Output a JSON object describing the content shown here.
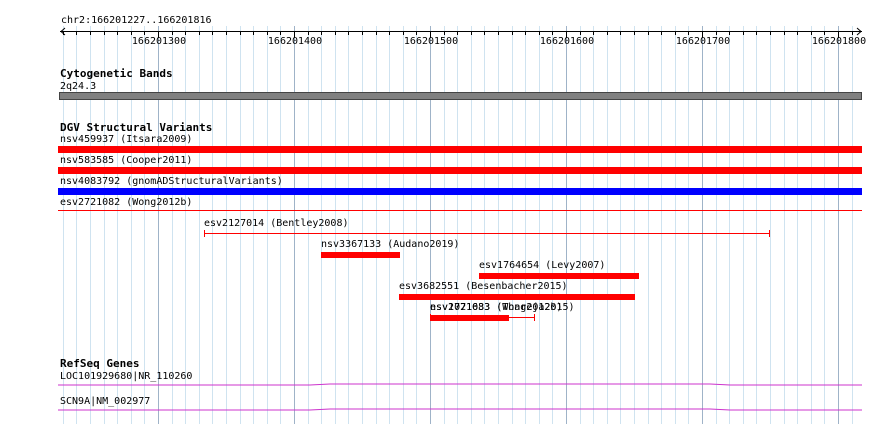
{
  "ruler": {
    "region_label": "chr2:166201227..166201816",
    "ticks": [
      "166201300",
      "166201400",
      "166201500",
      "166201600",
      "166201700",
      "166201800"
    ]
  },
  "cytoband": {
    "title": "Cytogenetic Bands",
    "band": "2q24.3",
    "color": "#808080"
  },
  "dgv": {
    "title": "DGV Structural Variants",
    "colors": {
      "red": "#ff0000",
      "blue": "#0000ff"
    },
    "full_rows": [
      {
        "label": "nsv459937 (Itsara2009)",
        "color": "red",
        "style": "thick"
      },
      {
        "label": "nsv583585 (Cooper2011)",
        "color": "red",
        "style": "thick"
      },
      {
        "label": "nsv4083792 (gnomADStructuralVariants)",
        "color": "blue",
        "style": "thick"
      },
      {
        "label": "esv2721082 (Wong2012b)",
        "color": "red",
        "style": "thin"
      }
    ],
    "features": [
      {
        "label": "esv2127014 (Bentley2008)",
        "start": 166201334,
        "end": 166201750,
        "style": "thin"
      },
      {
        "label": "nsv3367133 (Audano2019)",
        "start": 166201420,
        "end": 166201478,
        "style": "thick"
      },
      {
        "label": "esv1764654 (Levy2007)",
        "start": 166201536,
        "end": 166201654,
        "style": "thick"
      },
      {
        "label": "esv3682551 (Besenbacher2015)",
        "start": 166201477,
        "end": 166201651,
        "style": "thick"
      },
      {
        "label": "esv2721083 (Wong2012b)",
        "start": 166201500,
        "end": 166201577,
        "style": "thin"
      },
      {
        "label": "nsv1071633 (Thareja2015)",
        "start": 166201500,
        "end": 166201558,
        "style": "thick"
      }
    ]
  },
  "refseq": {
    "title": "RefSeq Genes",
    "color": "#cc33cc",
    "genes": [
      {
        "label": "LOC101929680|NR_110260"
      },
      {
        "label": "SCN9A|NM_002977"
      }
    ]
  }
}
